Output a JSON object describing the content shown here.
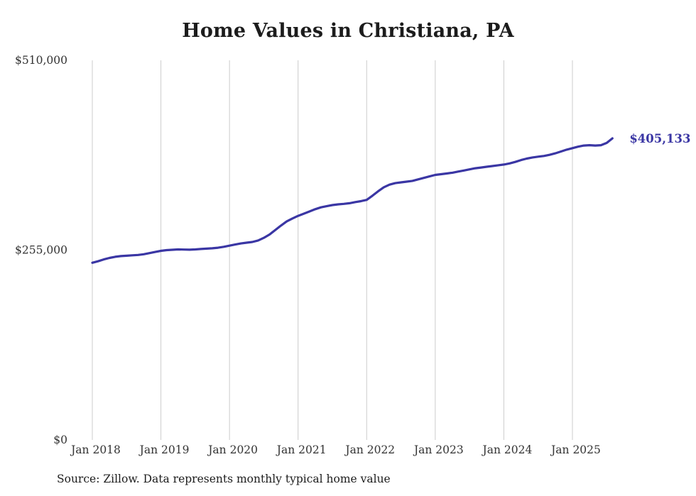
{
  "chart": {
    "title": "Home Values in Christiana, PA",
    "source_note": "Source: Zillow. Data represents monthly typical home value",
    "end_label": "$405,133"
  },
  "chart_data": {
    "type": "line",
    "title": "Home Values in Christiana, PA",
    "source_note": "Source: Zillow. Data represents monthly typical home value",
    "end_label": "$405,133",
    "end_value": 405133,
    "ylim": [
      0,
      510000
    ],
    "grid": "vertical-only",
    "legend": "none",
    "line_color": "#3a36a4",
    "grid_color": "#cccccc",
    "text_color": "#333333",
    "y_ticks": [
      {
        "value": 0,
        "label": "$0"
      },
      {
        "value": 255000,
        "label": "$255,000"
      },
      {
        "value": 510000,
        "label": "$510,000"
      }
    ],
    "x_ticks": [
      "Jan 2018",
      "Jan 2019",
      "Jan 2020",
      "Jan 2021",
      "Jan 2022",
      "Jan 2023",
      "Jan 2024",
      "Jan 2025"
    ],
    "series": [
      {
        "name": "Monthly typical home value",
        "start": "Jan 2018",
        "frequency": "monthly",
        "values": [
          238000,
          240000,
          242500,
          244500,
          246000,
          247000,
          247500,
          248000,
          248500,
          249500,
          251000,
          252500,
          254000,
          255000,
          255500,
          256000,
          255800,
          255600,
          256000,
          256500,
          257000,
          257500,
          258200,
          259500,
          261000,
          262500,
          264000,
          265000,
          266000,
          268000,
          271500,
          276000,
          282000,
          288000,
          293500,
          297500,
          301000,
          304000,
          307000,
          310000,
          312500,
          314000,
          315500,
          316500,
          317200,
          318000,
          319500,
          320800,
          322500,
          328000,
          334000,
          339500,
          343000,
          345000,
          346000,
          347000,
          348000,
          350000,
          352000,
          354000,
          356000,
          357000,
          358000,
          359000,
          360500,
          362000,
          363500,
          365000,
          366000,
          367000,
          368000,
          369000,
          370000,
          371500,
          373500,
          376000,
          378000,
          379500,
          380500,
          381500,
          383000,
          385000,
          387500,
          390000,
          392000,
          394000,
          395500,
          396000,
          395500,
          396000,
          399000,
          405133
        ]
      }
    ]
  }
}
